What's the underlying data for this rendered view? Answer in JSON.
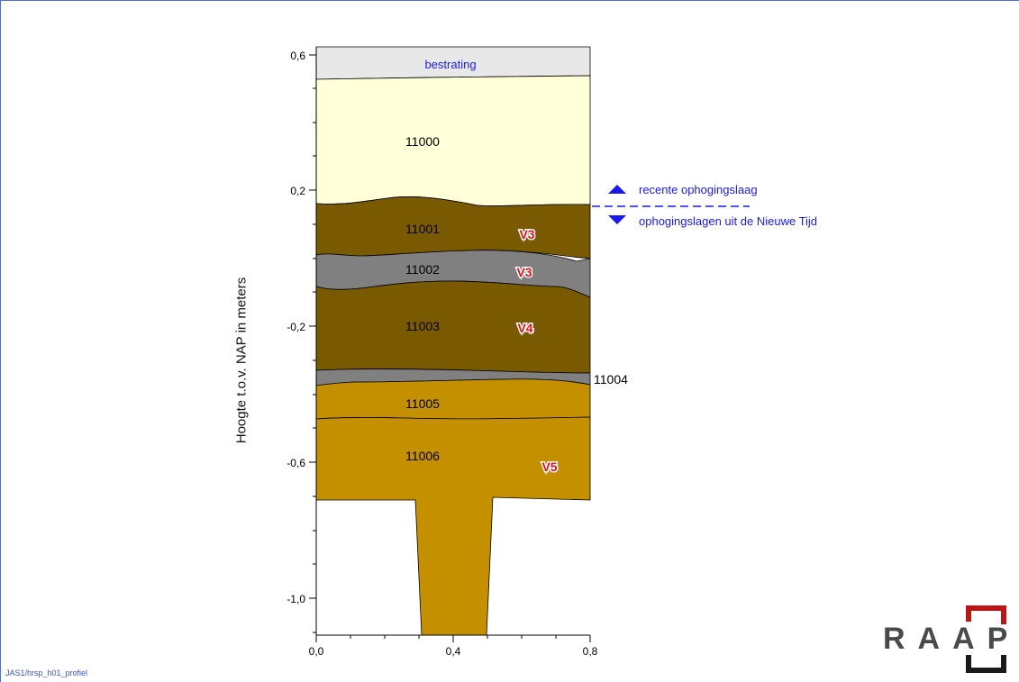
{
  "yaxis_title": "Hoogte t.o.v. NAP in meters",
  "yticks": [
    "0,6",
    "0,2",
    "-0,2",
    "-0,6",
    "-1,0"
  ],
  "xticks": [
    "0,0",
    "0,4",
    "0,8"
  ],
  "layers": [
    {
      "id": "bestrating",
      "label": "bestrating",
      "color": "#e8e8e8",
      "label_color": "#1a1af0"
    },
    {
      "id": "11000",
      "label": "11000",
      "color": "#ffffd8"
    },
    {
      "id": "11001",
      "label": "11001",
      "color": "#7a5a00",
      "badge": "V3"
    },
    {
      "id": "11002",
      "label": "11002",
      "color": "#808080",
      "badge": "V3"
    },
    {
      "id": "11003",
      "label": "11003",
      "color": "#7a5a00",
      "badge": "V4"
    },
    {
      "id": "11004",
      "label": "11004",
      "color": "#808080"
    },
    {
      "id": "11005",
      "label": "11005",
      "color": "#c49000"
    },
    {
      "id": "11006",
      "label": "11006",
      "color": "#c49000",
      "badge": "V5"
    }
  ],
  "legend": {
    "up_label": "recente ophogingslaag",
    "down_label": "ophogingslagen uit de Nieuwe Tijd",
    "color": "#1a1af0"
  },
  "footer_code": "JAS1/hrsp_h01_profiel",
  "logo": "RAAP"
}
